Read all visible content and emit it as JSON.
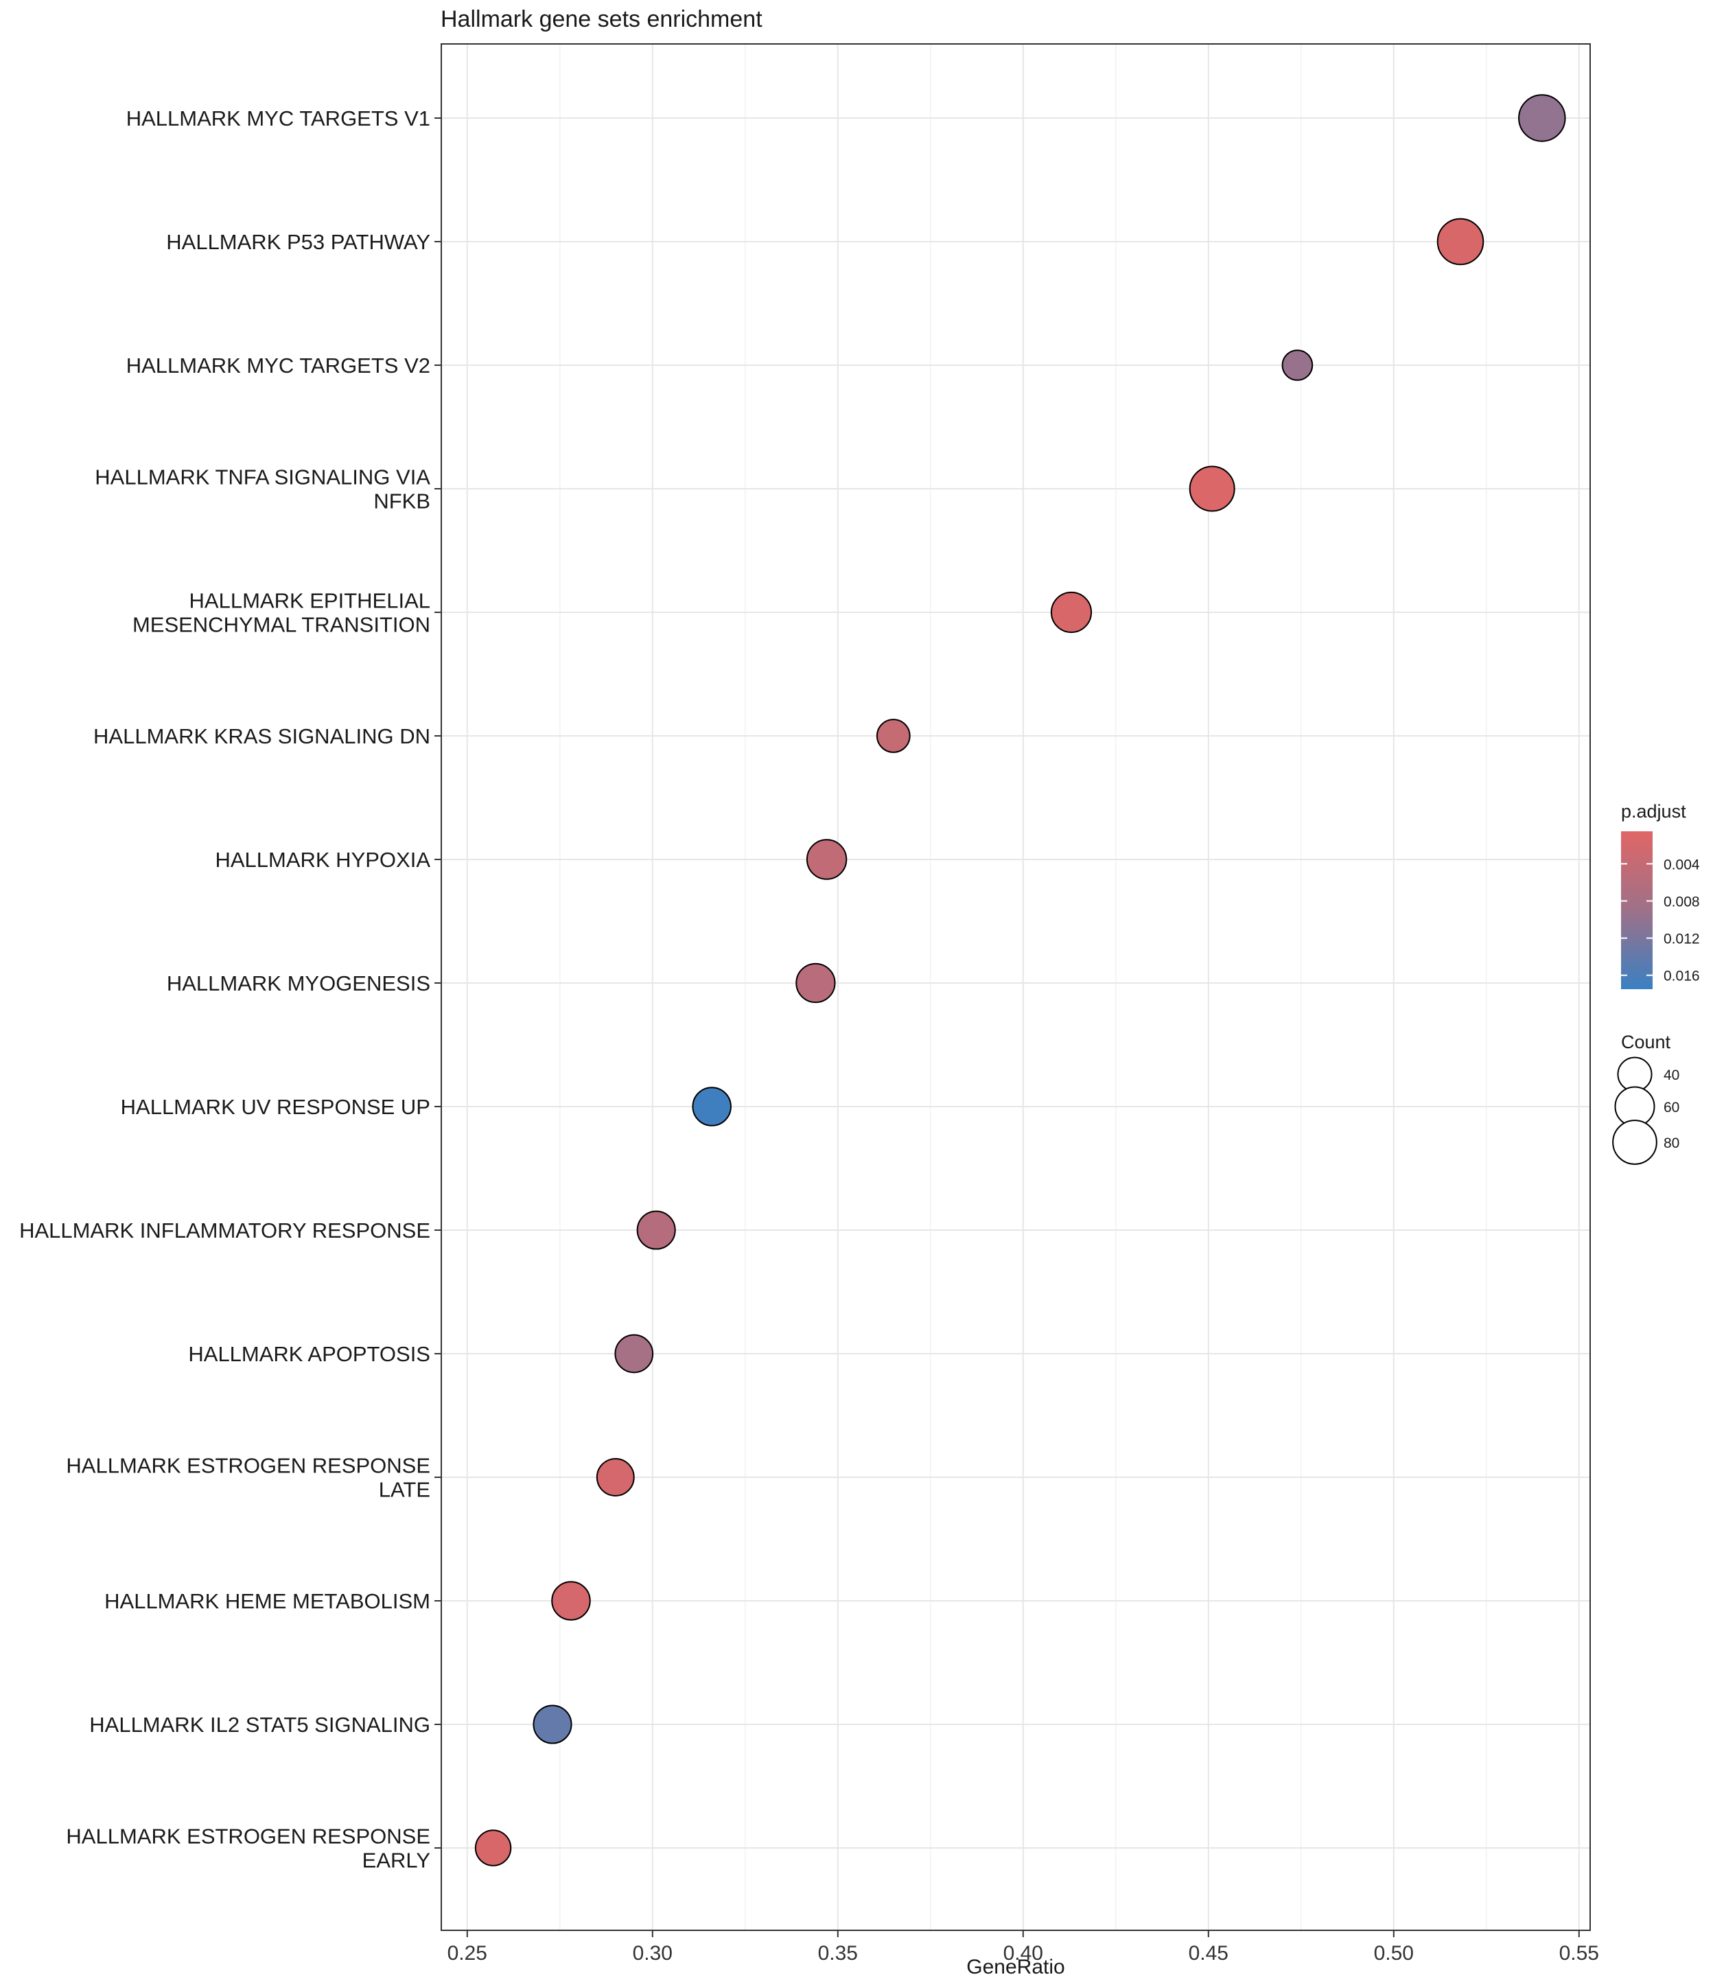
{
  "chart_data": {
    "type": "scatter",
    "subtype": "dotplot",
    "title": "Hallmark gene sets enrichment",
    "xlabel": "GeneRatio",
    "ylabel": "",
    "xlim": [
      0.243,
      0.553
    ],
    "x_ticks": [
      "0.25",
      "0.30",
      "0.35",
      "0.40",
      "0.45",
      "0.50",
      "0.55"
    ],
    "x_tick_values": [
      0.25,
      0.3,
      0.35,
      0.4,
      0.45,
      0.5,
      0.55
    ],
    "grid": true,
    "categories": [
      [
        "HALLMARK MYC TARGETS V1"
      ],
      [
        "HALLMARK P53 PATHWAY"
      ],
      [
        "HALLMARK MYC TARGETS V2"
      ],
      [
        "HALLMARK TNFA SIGNALING VIA",
        "NFKB"
      ],
      [
        "HALLMARK EPITHELIAL",
        "MESENCHYMAL TRANSITION"
      ],
      [
        "HALLMARK KRAS SIGNALING DN"
      ],
      [
        "HALLMARK HYPOXIA"
      ],
      [
        "HALLMARK MYOGENESIS"
      ],
      [
        "HALLMARK UV RESPONSE UP"
      ],
      [
        "HALLMARK INFLAMMATORY RESPONSE"
      ],
      [
        "HALLMARK APOPTOSIS"
      ],
      [
        "HALLMARK ESTROGEN RESPONSE",
        "LATE"
      ],
      [
        "HALLMARK HEME METABOLISM"
      ],
      [
        "HALLMARK IL2 STAT5 SIGNALING"
      ],
      [
        "HALLMARK ESTROGEN RESPONSE",
        "EARLY"
      ]
    ],
    "points": [
      {
        "x": 0.54,
        "count": 88,
        "p_adjust": 0.01
      },
      {
        "x": 0.518,
        "count": 85,
        "p_adjust": 0.0015
      },
      {
        "x": 0.474,
        "count": 27,
        "p_adjust": 0.0095
      },
      {
        "x": 0.451,
        "count": 80,
        "p_adjust": 0.0012
      },
      {
        "x": 0.413,
        "count": 60,
        "p_adjust": 0.0015
      },
      {
        "x": 0.365,
        "count": 35,
        "p_adjust": 0.004
      },
      {
        "x": 0.347,
        "count": 58,
        "p_adjust": 0.0045
      },
      {
        "x": 0.344,
        "count": 55,
        "p_adjust": 0.0055
      },
      {
        "x": 0.316,
        "count": 53,
        "p_adjust": 0.017
      },
      {
        "x": 0.301,
        "count": 52,
        "p_adjust": 0.006
      },
      {
        "x": 0.295,
        "count": 51,
        "p_adjust": 0.008
      },
      {
        "x": 0.29,
        "count": 49,
        "p_adjust": 0.002
      },
      {
        "x": 0.278,
        "count": 53,
        "p_adjust": 0.002
      },
      {
        "x": 0.273,
        "count": 52,
        "p_adjust": 0.014
      },
      {
        "x": 0.257,
        "count": 43,
        "p_adjust": 0.0015
      }
    ],
    "color_legend": {
      "title": "p.adjust",
      "range": [
        0.0005,
        0.0175
      ],
      "ticks": [
        0.004,
        0.008,
        0.012,
        0.016
      ],
      "tick_labels": [
        "0.004",
        "0.008",
        "0.012",
        "0.016"
      ],
      "low_color": "#e06666",
      "mid_color": "#9e7189",
      "high_color": "#3a80c2"
    },
    "size_legend": {
      "title": "Count",
      "values": [
        40,
        60,
        80
      ],
      "labels": [
        "40",
        "60",
        "80"
      ]
    },
    "point_outline_color": "#000000"
  }
}
